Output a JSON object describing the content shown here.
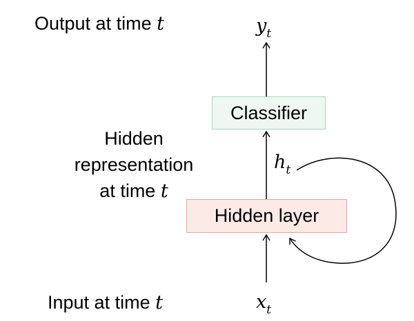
{
  "labels": {
    "output": "Output at time",
    "hidden_line1": "Hidden",
    "hidden_line2": "representation",
    "hidden_line3": "at time",
    "input": "Input at time",
    "time_var": "t"
  },
  "nodes": {
    "classifier": "Classifier",
    "hidden_layer": "Hidden layer"
  },
  "vars": {
    "y": "y",
    "h": "h",
    "x": "x",
    "sub": "t"
  },
  "colors": {
    "classifier_fill": "#eef7f1",
    "classifier_border": "#a6d8b8",
    "hidden_fill": "#fbeae6",
    "hidden_border": "#e0a89e"
  }
}
